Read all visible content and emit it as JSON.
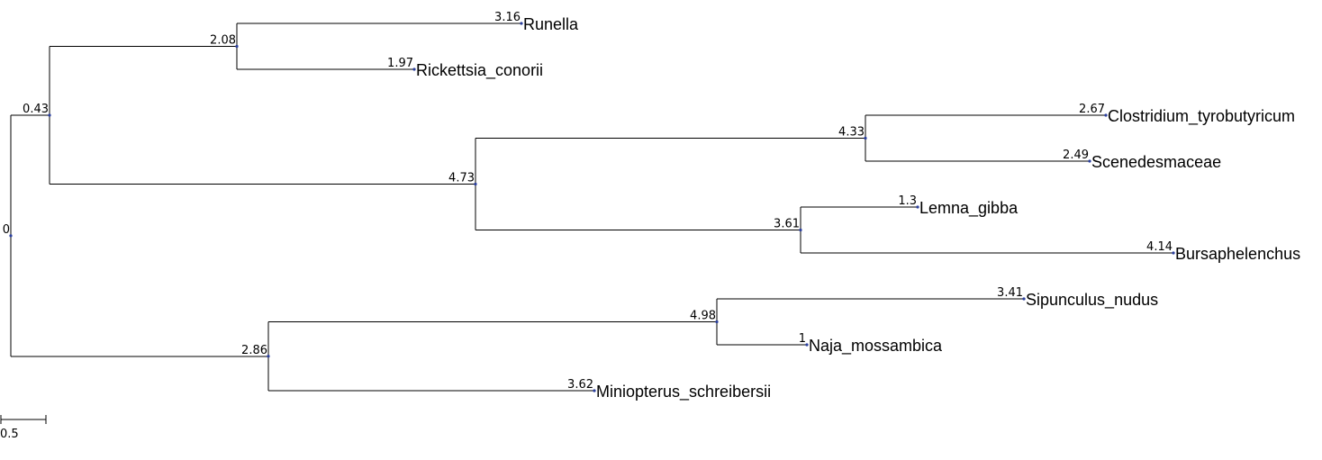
{
  "tree": {
    "name": "root",
    "length": "0",
    "children": [
      {
        "name": "n1",
        "length": "0.43",
        "children": [
          {
            "name": "n2",
            "length": "2.08",
            "children": [
              {
                "name": "Runella",
                "length": "3.16"
              },
              {
                "name": "Rickettsia_conorii",
                "length": "1.97"
              }
            ]
          },
          {
            "name": "n3",
            "length": "4.73",
            "children": [
              {
                "name": "n4",
                "length": "4.33",
                "children": [
                  {
                    "name": "Clostridium_tyrobutyricum",
                    "length": "2.67"
                  },
                  {
                    "name": "Scenedesmaceae",
                    "length": "2.49"
                  }
                ]
              },
              {
                "name": "n5",
                "length": "3.61",
                "children": [
                  {
                    "name": "Lemna_gibba",
                    "length": "1.3"
                  },
                  {
                    "name": "Bursaphelenchus",
                    "length": "4.14"
                  }
                ]
              }
            ]
          }
        ]
      },
      {
        "name": "n6",
        "length": "2.86",
        "children": [
          {
            "name": "n7",
            "length": "4.98",
            "children": [
              {
                "name": "Sipunculus_nudus",
                "length": "3.41"
              },
              {
                "name": "Naja_mossambica",
                "length": "1"
              }
            ]
          },
          {
            "name": "Miniopterus_schreibersii",
            "length": "3.62"
          }
        ]
      }
    ]
  },
  "scale_bar": {
    "label": "0.5",
    "value": 0.5
  },
  "colors": {
    "branch": "#000000",
    "node": "#2b3f9e"
  }
}
